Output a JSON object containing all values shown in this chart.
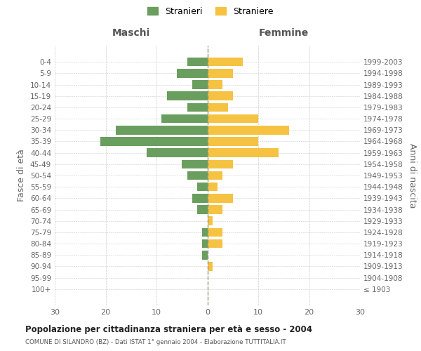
{
  "age_groups": [
    "100+",
    "95-99",
    "90-94",
    "85-89",
    "80-84",
    "75-79",
    "70-74",
    "65-69",
    "60-64",
    "55-59",
    "50-54",
    "45-49",
    "40-44",
    "35-39",
    "30-34",
    "25-29",
    "20-24",
    "15-19",
    "10-14",
    "5-9",
    "0-4"
  ],
  "birth_years": [
    "≤ 1903",
    "1904-1908",
    "1909-1913",
    "1914-1918",
    "1919-1923",
    "1924-1928",
    "1929-1933",
    "1934-1938",
    "1939-1943",
    "1944-1948",
    "1949-1953",
    "1954-1958",
    "1959-1963",
    "1964-1968",
    "1969-1973",
    "1974-1978",
    "1979-1983",
    "1984-1988",
    "1989-1993",
    "1994-1998",
    "1999-2003"
  ],
  "males": [
    0,
    0,
    0,
    1,
    1,
    1,
    0,
    2,
    3,
    2,
    4,
    5,
    12,
    21,
    18,
    9,
    4,
    8,
    3,
    6,
    4
  ],
  "females": [
    0,
    0,
    1,
    0,
    3,
    3,
    1,
    3,
    5,
    2,
    3,
    5,
    14,
    10,
    16,
    10,
    4,
    5,
    3,
    5,
    7
  ],
  "male_color": "#6a9e5e",
  "female_color": "#f5c242",
  "grid_color": "#cccccc",
  "title": "Popolazione per cittadinanza straniera per età e sesso - 2004",
  "subtitle": "COMUNE DI SILANDRO (BZ) - Dati ISTAT 1° gennaio 2004 - Elaborazione TUTTITALIA.IT",
  "ylabel_left": "Fasce di età",
  "ylabel_right": "Anni di nascita",
  "header_left": "Maschi",
  "header_right": "Femmine",
  "legend_male": "Stranieri",
  "legend_female": "Straniere",
  "xlim": 30
}
